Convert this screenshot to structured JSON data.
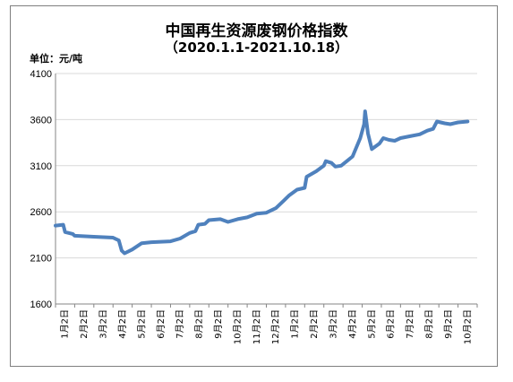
{
  "chart_data": {
    "type": "line",
    "title": "中国再生资源废钢价格指数",
    "subtitle": "（2020.1.1-2021.10.18）",
    "unit_label": "单位：元/吨",
    "xlabel": "",
    "ylabel": "",
    "ylim": [
      1600,
      4100
    ],
    "yticks": [
      "1600",
      "2100",
      "2600",
      "3100",
      "3600",
      "4100"
    ],
    "grid": true,
    "legend": "none",
    "line_color": "#4f81bd",
    "grid_color": "#d9d9d9",
    "x_tick_labels": [
      "1月2日",
      "2月2日",
      "3月2日",
      "4月2日",
      "5月2日",
      "6月2日",
      "7月2日",
      "8月2日",
      "9月2日",
      "10月2日",
      "11月2日",
      "12月2日",
      "1月2日",
      "2月2日",
      "3月2日",
      "4月2日",
      "5月2日",
      "6月2日",
      "7月2日",
      "8月2日",
      "9月2日",
      "10月2日"
    ],
    "series": [
      {
        "values": [
          [
            0,
            2450
          ],
          [
            0.4,
            2460
          ],
          [
            0.5,
            2380
          ],
          [
            0.9,
            2360
          ],
          [
            1.0,
            2340
          ],
          [
            2.0,
            2330
          ],
          [
            3.0,
            2320
          ],
          [
            3.3,
            2290
          ],
          [
            3.45,
            2180
          ],
          [
            3.6,
            2150
          ],
          [
            4.0,
            2190
          ],
          [
            4.5,
            2260
          ],
          [
            5.0,
            2270
          ],
          [
            6.0,
            2280
          ],
          [
            6.5,
            2310
          ],
          [
            7.0,
            2370
          ],
          [
            7.3,
            2390
          ],
          [
            7.45,
            2460
          ],
          [
            7.8,
            2470
          ],
          [
            8.0,
            2510
          ],
          [
            8.6,
            2520
          ],
          [
            9.0,
            2490
          ],
          [
            9.5,
            2520
          ],
          [
            10.0,
            2540
          ],
          [
            10.5,
            2580
          ],
          [
            11.0,
            2590
          ],
          [
            11.5,
            2640
          ],
          [
            11.9,
            2720
          ],
          [
            12.2,
            2780
          ],
          [
            12.6,
            2840
          ],
          [
            13.0,
            2860
          ],
          [
            13.1,
            2980
          ],
          [
            13.6,
            3040
          ],
          [
            14.0,
            3100
          ],
          [
            14.1,
            3150
          ],
          [
            14.4,
            3130
          ],
          [
            14.6,
            3090
          ],
          [
            14.9,
            3100
          ],
          [
            15.2,
            3150
          ],
          [
            15.5,
            3200
          ],
          [
            15.9,
            3400
          ],
          [
            16.1,
            3550
          ],
          [
            16.15,
            3690
          ],
          [
            16.3,
            3450
          ],
          [
            16.5,
            3280
          ],
          [
            16.9,
            3340
          ],
          [
            17.1,
            3400
          ],
          [
            17.4,
            3380
          ],
          [
            17.7,
            3370
          ],
          [
            18.0,
            3400
          ],
          [
            18.5,
            3420
          ],
          [
            19.0,
            3440
          ],
          [
            19.4,
            3480
          ],
          [
            19.7,
            3500
          ],
          [
            19.9,
            3580
          ],
          [
            20.3,
            3560
          ],
          [
            20.6,
            3550
          ],
          [
            21.0,
            3570
          ],
          [
            21.5,
            3580
          ]
        ]
      }
    ]
  }
}
